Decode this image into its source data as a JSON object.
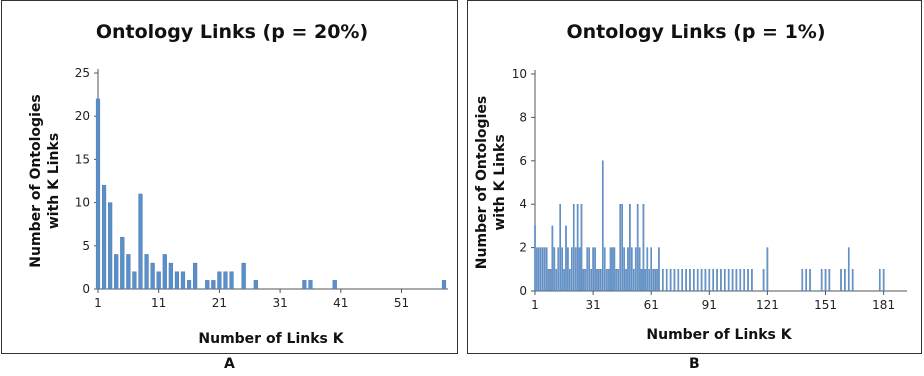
{
  "chart_data": [
    {
      "type": "bar",
      "title": "Ontology Links (p = 20%)",
      "xlabel": "Number of Links K",
      "ylabel": "Number of Ontologies with K Links",
      "ylabel_lines": [
        "Number of Ontologies",
        "with K Links"
      ],
      "ylim": [
        0,
        25
      ],
      "yticks": [
        0,
        5,
        10,
        15,
        20,
        25
      ],
      "xlim": [
        1,
        58
      ],
      "xticks": [
        1,
        11,
        21,
        31,
        41,
        51
      ],
      "grid": false,
      "bar_color": "#5b8fc9",
      "x": [
        1,
        2,
        3,
        4,
        5,
        6,
        7,
        8,
        9,
        10,
        11,
        12,
        13,
        14,
        15,
        16,
        17,
        19,
        20,
        21,
        22,
        23,
        25,
        27,
        35,
        36,
        40,
        58
      ],
      "values": [
        22,
        12,
        10,
        4,
        6,
        4,
        2,
        11,
        4,
        3,
        2,
        4,
        3,
        2,
        2,
        1,
        3,
        1,
        1,
        2,
        2,
        2,
        3,
        1,
        1,
        1,
        1,
        1
      ]
    },
    {
      "type": "bar",
      "title": "Ontology Links (p = 1%)",
      "xlabel": "Number of Links K",
      "ylabel": "Number of Ontologies with K Links",
      "ylabel_lines": [
        "Number of Ontologies",
        "with K Links"
      ],
      "ylim": [
        0,
        10
      ],
      "yticks": [
        0,
        2,
        4,
        6,
        8,
        10
      ],
      "xlim": [
        1,
        191
      ],
      "xticks": [
        1,
        31,
        61,
        91,
        121,
        151,
        181
      ],
      "grid": false,
      "bar_color": "#6f9fd6",
      "x": [
        1,
        2,
        3,
        4,
        5,
        6,
        7,
        8,
        9,
        10,
        11,
        12,
        13,
        14,
        15,
        16,
        17,
        18,
        19,
        20,
        21,
        22,
        23,
        24,
        25,
        26,
        27,
        28,
        29,
        30,
        31,
        32,
        33,
        34,
        35,
        36,
        37,
        38,
        39,
        40,
        41,
        42,
        43,
        44,
        45,
        46,
        47,
        48,
        49,
        50,
        51,
        52,
        53,
        54,
        55,
        56,
        57,
        58,
        59,
        60,
        61,
        62,
        63,
        64,
        65,
        67,
        69,
        71,
        73,
        75,
        77,
        79,
        81,
        83,
        85,
        87,
        89,
        91,
        93,
        95,
        97,
        99,
        101,
        103,
        105,
        107,
        109,
        111,
        113,
        119,
        121,
        139,
        141,
        143,
        149,
        151,
        153,
        159,
        161,
        163,
        165,
        179,
        181
      ],
      "values": [
        3,
        2,
        2,
        2,
        2,
        2,
        2,
        1,
        1,
        3,
        2,
        1,
        2,
        4,
        2,
        1,
        3,
        2,
        1,
        2,
        4,
        2,
        4,
        2,
        4,
        1,
        1,
        2,
        2,
        1,
        2,
        2,
        1,
        1,
        1,
        6,
        2,
        1,
        1,
        2,
        2,
        2,
        1,
        1,
        4,
        4,
        2,
        1,
        2,
        4,
        2,
        1,
        2,
        4,
        2,
        1,
        4,
        1,
        2,
        1,
        2,
        1,
        1,
        1,
        2,
        1,
        1,
        1,
        1,
        1,
        1,
        1,
        1,
        1,
        1,
        1,
        1,
        1,
        1,
        1,
        1,
        1,
        1,
        1,
        1,
        1,
        1,
        1,
        1,
        1,
        2,
        1,
        1,
        1,
        1,
        1,
        1,
        1,
        1,
        2,
        1,
        1,
        1
      ]
    }
  ],
  "panels": {
    "a_letter": "A",
    "b_letter": "B"
  }
}
